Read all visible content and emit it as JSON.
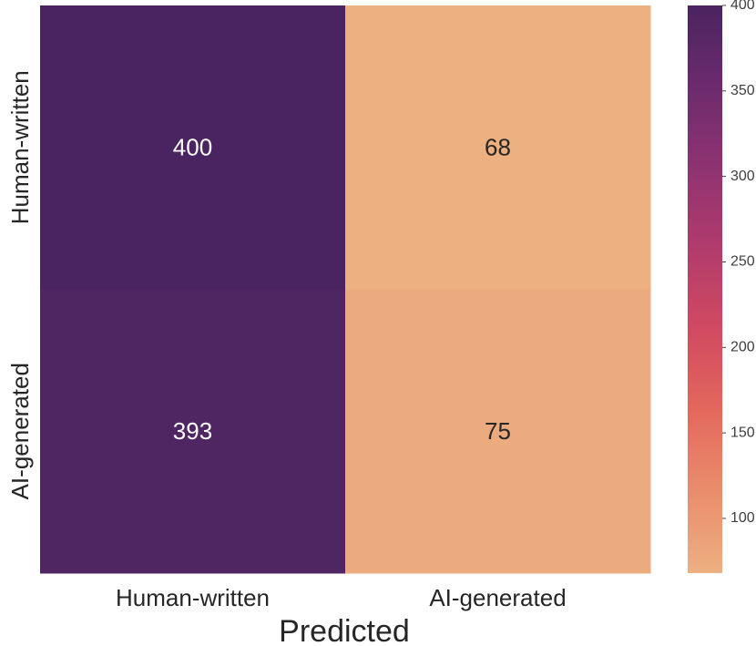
{
  "chart_data": {
    "type": "heatmap",
    "title": "",
    "xlabel": "Predicted",
    "ylabel": "",
    "x_categories": [
      "Human-written",
      "AI-generated"
    ],
    "y_categories": [
      "Human-written",
      "AI-generated"
    ],
    "values": [
      [
        400,
        68
      ],
      [
        393,
        75
      ]
    ],
    "colorbar": {
      "range": [
        68,
        400
      ],
      "ticks": [
        100,
        150,
        200,
        250,
        300,
        350,
        400
      ],
      "tick_labels": [
        "100",
        "150",
        "200",
        "250",
        "300",
        "350",
        "400"
      ],
      "colormap": "flare",
      "stops": [
        "#edb081",
        "#e98d6b",
        "#e3685c",
        "#d14a61",
        "#b13c6c",
        "#8f3371",
        "#6c2b6d",
        "#4a2460"
      ]
    },
    "grid": false
  }
}
